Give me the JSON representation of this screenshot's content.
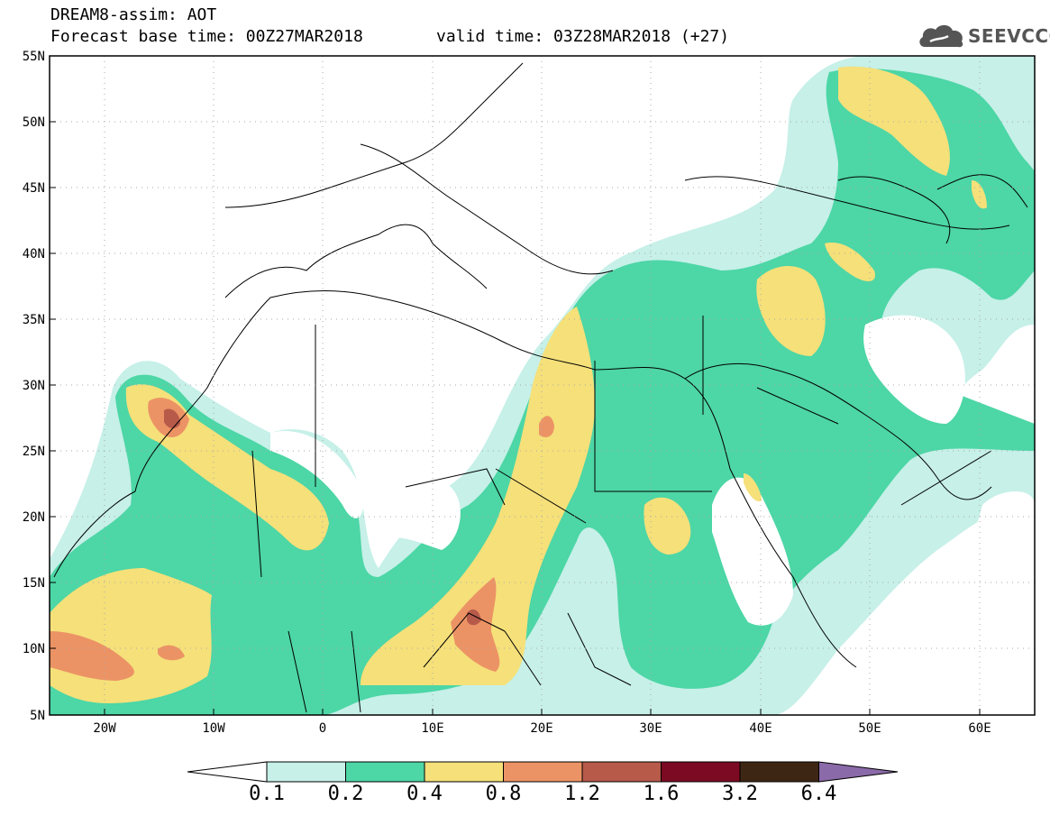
{
  "title": {
    "line1": "DREAM8-assim: AOT",
    "line2_left": "Forecast base time: 00Z27MAR2018",
    "line2_right": "valid time: 03Z28MAR2018 (+27)"
  },
  "logo": {
    "text": "SEEVCCC",
    "icon": "cloud-logo-icon"
  },
  "axes": {
    "lat_labels": [
      "55N",
      "50N",
      "45N",
      "40N",
      "35N",
      "30N",
      "25N",
      "20N",
      "15N",
      "10N",
      "5N"
    ],
    "lon_labels": [
      "20W",
      "10W",
      "0",
      "10E",
      "20E",
      "30E",
      "40E",
      "50E",
      "60E"
    ],
    "lat_range": [
      5,
      55
    ],
    "lon_range": [
      -25,
      65
    ],
    "grid": "dotted"
  },
  "colorbar": {
    "labels": [
      "0.1",
      "0.2",
      "0.4",
      "0.8",
      "1.2",
      "1.6",
      "3.2",
      "6.4"
    ],
    "colors": [
      "#ffffff",
      "#c6f0e8",
      "#4dd6a6",
      "#f5e07a",
      "#ec9365",
      "#b75a4a",
      "#7c0a22",
      "#3d2614",
      "#8a6aa8"
    ],
    "extend": "both"
  },
  "field_colors": {
    "c01": "#c6f0e8",
    "c02": "#4dd6a6",
    "c04": "#f5e07a",
    "c08": "#ec9365",
    "c12": "#b75a4a"
  }
}
